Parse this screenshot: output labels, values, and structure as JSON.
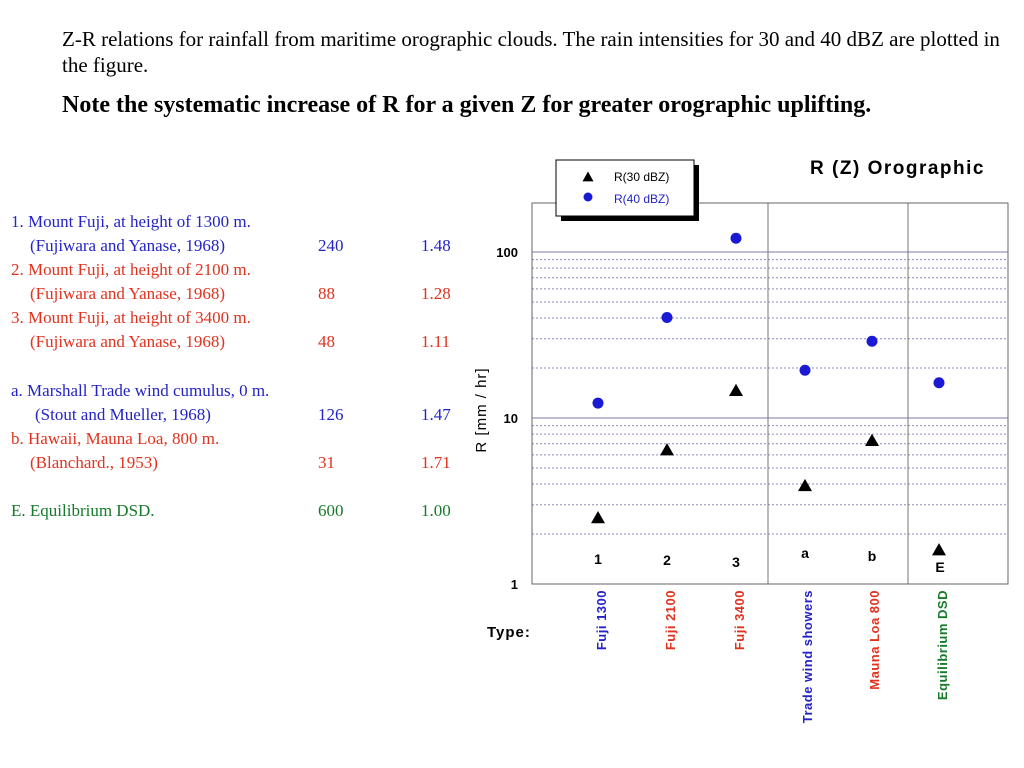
{
  "intro_text": "Z-R relations for rainfall from maritime orographic clouds. The rain intensities for 30 and 40 dBZ are plotted in the figure.",
  "note_text": "Note the systematic increase of R for a given Z for greater orographic uplifting.",
  "colors": {
    "blue": "#2323c8",
    "red": "#e0321e",
    "green": "#157a2a",
    "black": "#000000"
  },
  "sources": [
    {
      "title": "1. Mount Fuji, at height of 1300 m.",
      "ref": "(Fujiwara and Yanase, 1968)",
      "a": "240",
      "b": "1.48",
      "color": "#2323c8"
    },
    {
      "title": "2. Mount Fuji, at height of 2100 m.",
      "ref": "(Fujiwara and Yanase, 1968)",
      "a": "88",
      "b": "1.28",
      "color": "#e0321e"
    },
    {
      "title": "3. Mount Fuji, at height of 3400 m.",
      "ref": "(Fujiwara and Yanase, 1968)",
      "a": "48",
      "b": "1.11",
      "color": "#e0321e"
    },
    {
      "title": "a. Marshall Trade wind cumulus, 0 m.",
      "ref": "(Stout and Mueller, 1968)",
      "a": "126",
      "b": "1.47",
      "color": "#2323c8"
    },
    {
      "title": "b. Hawaii, Mauna Loa, 800 m.",
      "ref": "(Blanchard., 1953)",
      "a": "31",
      "b": "1.71",
      "color": "#e0321e"
    },
    {
      "title": "E. Equilibrium DSD.",
      "ref": "",
      "a": "600",
      "b": "1.00",
      "color": "#157a2a"
    }
  ],
  "chart_data": {
    "type": "scatter",
    "title": "R (Z)  Orographic",
    "xlabel": "Type:",
    "ylabel": "R [mm / hr]",
    "yscale": "log",
    "ylim": [
      1,
      250
    ],
    "yticks": [
      1,
      10,
      100
    ],
    "ytick_labels": [
      "1",
      "10",
      "100"
    ],
    "grid": true,
    "legend_position": "top-left",
    "categories": [
      {
        "code": "1",
        "type": "Fuji 1300",
        "color": "#2323c8"
      },
      {
        "code": "2",
        "type": "Fuji 2100",
        "color": "#e0321e"
      },
      {
        "code": "3",
        "type": "Fuji 3400",
        "color": "#e0321e"
      },
      {
        "code": "a",
        "type": "Trade wind showers",
        "color": "#2323c8"
      },
      {
        "code": "b",
        "type": "Mauna Loa 800",
        "color": "#e0321e"
      },
      {
        "code": "E",
        "type": "Equilibrium DSD",
        "color": "#157a2a"
      }
    ],
    "series": [
      {
        "name": "R(30 dBZ)",
        "marker": "triangle",
        "color": "#000000",
        "values": [
          2.5,
          6.4,
          14.6,
          3.9,
          7.3,
          1.6
        ]
      },
      {
        "name": "R(40 dBZ)",
        "marker": "circle",
        "color": "#1a1ad4",
        "values": [
          12.3,
          40.3,
          121,
          19.4,
          29.0,
          16.3
        ]
      }
    ]
  }
}
